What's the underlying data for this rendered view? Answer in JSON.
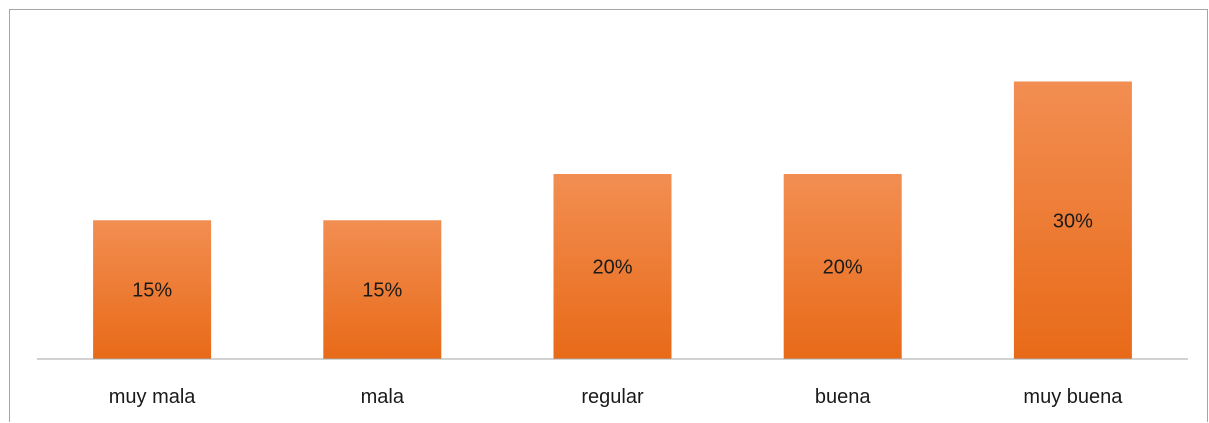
{
  "chart_data": {
    "type": "bar",
    "title": "",
    "xlabel": "",
    "ylabel": "",
    "categories": [
      "muy mala",
      "mala",
      "regular",
      "buena",
      "muy buena"
    ],
    "values": [
      15,
      15,
      20,
      20,
      30
    ],
    "data_labels": [
      "15%",
      "15%",
      "20%",
      "20%",
      "30%"
    ],
    "ylim": [
      0,
      35
    ],
    "grid": false,
    "legend": "none",
    "colors": {
      "bar_top": "#f28e52",
      "bar_bottom": "#e86a18",
      "axis": "#a6a6a6",
      "text": "#1a1a1a"
    }
  }
}
